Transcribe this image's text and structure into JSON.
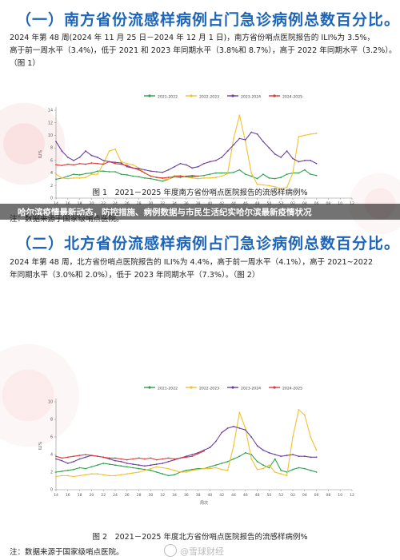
{
  "sections": [
    {
      "heading": "（一）南方省份流感样病例占门急诊病例总数百分比。",
      "paragraph_lines": [
        "2024 年第 48 周(2024 年 11 月 25 日－2024 年 12 月 1 日)，南方省份哨点医院报告的 ILI%为 3.5%，",
        "高于前一周水平（3.4%)，低于 2021 和 2023 年同期水平（3.8%和 8.7%），高于 2022 年同期水平（3.2%）。",
        "（图 1）"
      ],
      "caption": "图 1　2021－2025 年度南方省份哨点医院报告的流感样病例%",
      "note": "注：数据来源于国家级哨点医院。"
    },
    {
      "heading": "（二）北方省份流感样病例占门急诊病例总数百分比。",
      "paragraph_lines": [
        "2024 年第 48 周，北方省份哨点医院报告的 ILI%为 4.4%，高于前一周水平（4.1%），高于 2021~2022",
        "年同期水平（3.0%和 2.0%），低于 2023 年同期水平（7.3%）。（图 2）"
      ],
      "caption": "图 2　2021－2025 年度北方省份哨点医院报告的流感样病例%",
      "note": "注：数据来源于国家级哨点医院。"
    }
  ],
  "banner": "哈尔滨疫情最新动态，防控措施、病例数据与市民生活纪实哈尔滨最新疫情状况",
  "watermark": "@雪球财经",
  "colors": {
    "heading": "#1d65b9",
    "series_2021_2022": "#2ea24e",
    "series_2022_2023": "#f2c12e",
    "series_2023_2024": "#6b3fa0",
    "series_2024_2025": "#d83b3b"
  },
  "chart_data": [
    {
      "type": "line",
      "ylabel": "ILI%",
      "xlabel": "周次",
      "ylim": [
        0,
        14
      ],
      "yticks": [
        0,
        2,
        4,
        6,
        8,
        10,
        12,
        14
      ],
      "x_ticks": [
        "14",
        "16",
        "18",
        "20",
        "22",
        "24",
        "26",
        "28",
        "30",
        "32",
        "34",
        "36",
        "38",
        "40",
        "42",
        "44",
        "46",
        "48",
        "50",
        "52",
        "02",
        "04",
        "06",
        "08",
        "10",
        "12"
      ],
      "series": [
        {
          "name": "2021-2022",
          "color_key": "series_2021_2022",
          "values": [
            3.0,
            3.2,
            3.5,
            3.8,
            3.7,
            3.9,
            4.0,
            4.3,
            4.3,
            4.2,
            4.2,
            3.8,
            3.7,
            3.5,
            3.4,
            3.2,
            3.1,
            2.9,
            2.7,
            3.0,
            3.4,
            3.3,
            3.5,
            3.6,
            3.5,
            3.6,
            3.8,
            4.0,
            4.0,
            4.0,
            4.1,
            4.5,
            3.8,
            3.5,
            3.1,
            3.8,
            3.2,
            3.1,
            3.3,
            3.8,
            4.0,
            4.0,
            4.5,
            3.8,
            3.6
          ]
        },
        {
          "name": "2022-2023",
          "color_key": "series_2022_2023",
          "values": [
            3.8,
            3.2,
            3.1,
            3.2,
            3.2,
            3.3,
            3.8,
            3.8,
            5.5,
            7.5,
            7.8,
            5.8,
            5.5,
            5.3,
            4.8,
            4.0,
            3.5,
            3.3,
            3.1,
            3.0,
            3.6,
            3.6,
            3.4,
            3.2,
            3.1,
            3.2,
            3.2,
            3.3,
            3.5,
            3.9,
            9.5,
            13.2,
            9.0,
            4.0,
            2.2,
            2.1,
            2.0,
            1.8,
            1.5,
            1.7,
            4.0,
            9.8,
            10.0,
            10.2,
            10.3
          ]
        },
        {
          "name": "2023-2024",
          "color_key": "series_2023_2024",
          "values": [
            9.0,
            7.5,
            6.5,
            6.0,
            6.5,
            7.5,
            6.8,
            6.5,
            6.0,
            5.8,
            5.7,
            5.6,
            5.0,
            4.8,
            4.7,
            4.5,
            4.3,
            4.2,
            4.1,
            4.5,
            5.0,
            5.5,
            5.3,
            4.8,
            5.0,
            5.5,
            5.8,
            6.0,
            6.5,
            7.5,
            8.5,
            9.5,
            9.3,
            10.5,
            10.2,
            9.0,
            8.0,
            7.0,
            6.5,
            7.5,
            6.3,
            5.8,
            6.0,
            6.0,
            5.5
          ]
        },
        {
          "name": "2024-2025",
          "color_key": "series_2024_2025",
          "values": [
            5.3,
            5.2,
            5.4,
            5.3,
            5.5,
            5.4,
            5.6,
            5.5,
            5.4,
            5.8,
            5.5,
            5.4,
            5.2,
            4.8,
            4.5,
            4.0,
            3.5,
            3.3,
            3.2,
            3.3,
            3.4,
            3.5,
            3.4,
            3.4,
            3.5
          ]
        }
      ]
    },
    {
      "type": "line",
      "ylabel": "ILI%",
      "xlabel": "周次",
      "ylim": [
        0,
        10
      ],
      "yticks": [
        0,
        2,
        4,
        6,
        8,
        10
      ],
      "x_ticks": [
        "14",
        "16",
        "18",
        "20",
        "22",
        "24",
        "26",
        "28",
        "30",
        "32",
        "34",
        "36",
        "38",
        "40",
        "42",
        "44",
        "46",
        "48",
        "50",
        "52",
        "02",
        "04",
        "06",
        "08",
        "10",
        "12"
      ],
      "series": [
        {
          "name": "2021-2022",
          "color_key": "series_2021_2022",
          "values": [
            2.0,
            2.1,
            2.2,
            2.3,
            2.5,
            2.4,
            2.6,
            2.8,
            3.0,
            2.9,
            2.8,
            2.7,
            2.6,
            2.5,
            2.4,
            2.3,
            2.2,
            2.0,
            1.8,
            1.6,
            1.7,
            2.0,
            2.2,
            2.3,
            2.4,
            2.4,
            2.6,
            2.8,
            3.0,
            3.2,
            3.5,
            3.8,
            4.2,
            4.0,
            3.2,
            2.8,
            2.5,
            3.5,
            2.2,
            2.0,
            2.3,
            2.5,
            2.4,
            2.2,
            2.0
          ]
        },
        {
          "name": "2022-2023",
          "color_key": "series_2022_2023",
          "values": [
            1.5,
            1.6,
            1.6,
            1.5,
            1.6,
            1.7,
            1.8,
            1.8,
            1.7,
            1.6,
            1.6,
            1.7,
            1.8,
            1.9,
            2.0,
            2.2,
            2.4,
            2.6,
            2.5,
            2.4,
            2.2,
            2.0,
            2.0,
            2.2,
            2.3,
            2.4,
            2.4,
            2.5,
            2.3,
            2.2,
            5.0,
            8.8,
            7.0,
            3.5,
            2.3,
            2.4,
            2.8,
            2.0,
            1.8,
            1.6,
            6.0,
            9.1,
            8.5,
            6.0,
            4.5
          ]
        },
        {
          "name": "2023-2024",
          "color_key": "series_2023_2024",
          "values": [
            3.5,
            3.3,
            3.0,
            3.2,
            3.5,
            3.7,
            3.9,
            3.8,
            3.7,
            3.5,
            3.3,
            3.2,
            3.0,
            2.9,
            2.8,
            2.7,
            2.8,
            2.9,
            3.0,
            3.2,
            3.4,
            3.6,
            3.8,
            4.0,
            4.2,
            4.5,
            4.8,
            5.5,
            6.5,
            7.0,
            7.2,
            7.0,
            6.8,
            6.0,
            5.0,
            4.5,
            4.2,
            4.0,
            3.8,
            3.9,
            4.0,
            3.8,
            3.8,
            3.7,
            3.7
          ]
        },
        {
          "name": "2024-2025",
          "color_key": "series_2024_2025",
          "values": [
            3.8,
            3.6,
            3.7,
            3.8,
            3.9,
            4.0,
            3.9,
            3.8,
            3.7,
            3.6,
            3.6,
            3.5,
            3.4,
            3.5,
            3.6,
            3.5,
            3.6,
            3.4,
            3.5,
            3.6,
            3.5,
            3.6,
            3.7,
            3.8,
            4.1,
            4.4
          ]
        }
      ]
    }
  ]
}
